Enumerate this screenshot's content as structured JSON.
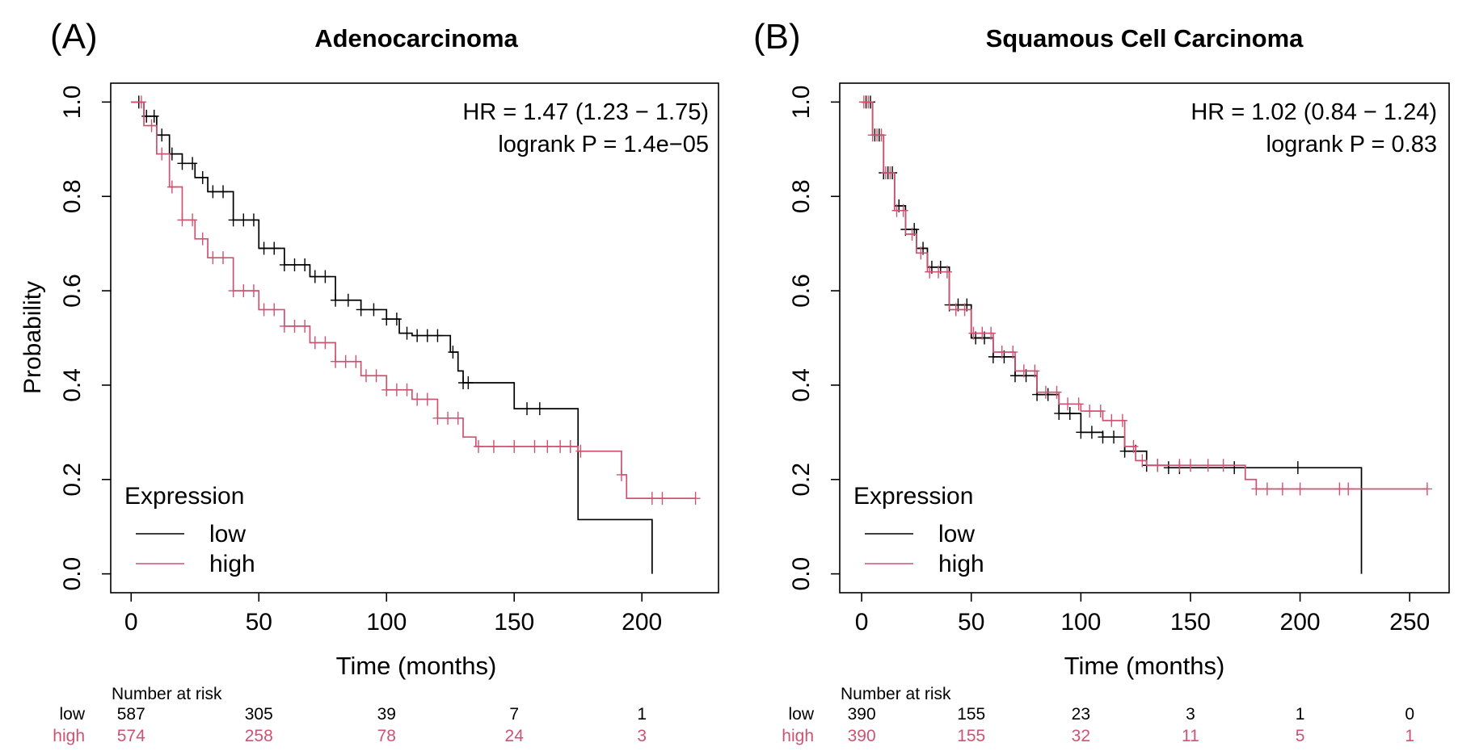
{
  "panels": [
    {
      "letter": "(A)",
      "annotation": {
        "hr": "HR = 1.47 (1.23 − 1.75)",
        "logrank": "logrank P = 1.4e−05"
      },
      "legend": {
        "title": "Expression",
        "low": "low",
        "high": "high"
      },
      "risk_table": {
        "header": "Number at risk",
        "low_label": "low",
        "high_label": "high",
        "low": [
          "587",
          "305",
          "39",
          "7",
          "1"
        ],
        "high": [
          "574",
          "258",
          "78",
          "24",
          "3"
        ]
      }
    },
    {
      "letter": "(B)",
      "annotation": {
        "hr": "HR = 1.02 (0.84 − 1.24)",
        "logrank": "logrank P = 0.83"
      },
      "legend": {
        "title": "Expression",
        "low": "low",
        "high": "high"
      },
      "risk_table": {
        "header": "Number at risk",
        "low_label": "low",
        "high_label": "high",
        "low": [
          "390",
          "155",
          "23",
          "3",
          "1",
          "0"
        ],
        "high": [
          "390",
          "155",
          "32",
          "11",
          "5",
          "1"
        ]
      }
    }
  ],
  "colors": {
    "low": "#000000",
    "high": "#cd5372"
  },
  "chart_data": [
    {
      "type": "line",
      "title": "Adenocarcinoma",
      "xlabel": "Time (months)",
      "ylabel": "Probability",
      "xlim": [
        -8,
        230
      ],
      "ylim": [
        -0.04,
        1.04
      ],
      "xticks": [
        0,
        50,
        100,
        150,
        200
      ],
      "yticks": [
        0.0,
        0.2,
        0.4,
        0.6,
        0.8,
        1.0
      ],
      "series": [
        {
          "name": "low",
          "x": [
            0,
            5,
            10,
            15,
            20,
            25,
            30,
            40,
            50,
            60,
            70,
            80,
            90,
            100,
            105,
            110,
            120,
            125,
            128,
            130,
            150,
            175,
            204,
            204
          ],
          "y": [
            1.0,
            0.97,
            0.93,
            0.89,
            0.87,
            0.84,
            0.81,
            0.75,
            0.69,
            0.655,
            0.63,
            0.58,
            0.56,
            0.54,
            0.51,
            0.505,
            0.505,
            0.47,
            0.43,
            0.405,
            0.35,
            0.115,
            0.115,
            0.0
          ],
          "censor_x": [
            3,
            6,
            9,
            12,
            16,
            20,
            24,
            28,
            32,
            36,
            40,
            44,
            48,
            52,
            56,
            60,
            64,
            68,
            72,
            76,
            80,
            85,
            90,
            95,
            100,
            104,
            108,
            112,
            116,
            120,
            126,
            130,
            132,
            155,
            160
          ]
        },
        {
          "name": "high",
          "x": [
            0,
            5,
            10,
            15,
            20,
            25,
            30,
            40,
            50,
            60,
            70,
            80,
            90,
            100,
            110,
            120,
            130,
            135,
            150,
            175,
            192,
            194,
            221
          ],
          "y": [
            1.0,
            0.95,
            0.89,
            0.82,
            0.75,
            0.71,
            0.67,
            0.6,
            0.56,
            0.525,
            0.49,
            0.45,
            0.42,
            0.39,
            0.37,
            0.33,
            0.29,
            0.27,
            0.27,
            0.26,
            0.21,
            0.16,
            0.16
          ],
          "censor_x": [
            4,
            8,
            12,
            16,
            20,
            24,
            28,
            32,
            36,
            40,
            44,
            48,
            52,
            56,
            60,
            64,
            68,
            72,
            76,
            80,
            84,
            88,
            92,
            96,
            100,
            104,
            108,
            112,
            116,
            120,
            124,
            128,
            136,
            142,
            150,
            158,
            163,
            168,
            172,
            176,
            192,
            204,
            208,
            221
          ]
        }
      ]
    },
    {
      "type": "line",
      "title": "Squamous Cell Carcinoma",
      "xlabel": "Time (months)",
      "ylabel": "",
      "xlim": [
        -10,
        268
      ],
      "ylim": [
        -0.04,
        1.04
      ],
      "xticks": [
        0,
        50,
        100,
        150,
        200,
        250
      ],
      "yticks": [
        0.0,
        0.2,
        0.4,
        0.6,
        0.8,
        1.0
      ],
      "series": [
        {
          "name": "low",
          "x": [
            0,
            5,
            10,
            15,
            20,
            25,
            30,
            40,
            50,
            60,
            70,
            80,
            90,
            100,
            110,
            120,
            130,
            140,
            150,
            175,
            200,
            228,
            228
          ],
          "y": [
            1.0,
            0.93,
            0.85,
            0.78,
            0.73,
            0.69,
            0.65,
            0.57,
            0.5,
            0.46,
            0.42,
            0.38,
            0.34,
            0.3,
            0.29,
            0.26,
            0.23,
            0.225,
            0.225,
            0.225,
            0.225,
            0.225,
            0.0
          ],
          "censor_x": [
            2,
            4,
            6,
            8,
            10,
            12,
            14,
            17,
            20,
            24,
            28,
            32,
            36,
            40,
            44,
            48,
            52,
            56,
            60,
            65,
            70,
            75,
            80,
            85,
            90,
            95,
            100,
            105,
            110,
            115,
            120,
            125,
            130,
            135,
            140,
            145,
            170,
            199
          ]
        },
        {
          "name": "high",
          "x": [
            0,
            5,
            10,
            15,
            20,
            25,
            30,
            40,
            50,
            60,
            70,
            80,
            90,
            100,
            110,
            120,
            125,
            130,
            170,
            175,
            180,
            258
          ],
          "y": [
            1.0,
            0.93,
            0.85,
            0.77,
            0.72,
            0.68,
            0.64,
            0.56,
            0.51,
            0.47,
            0.43,
            0.385,
            0.36,
            0.345,
            0.325,
            0.27,
            0.24,
            0.23,
            0.23,
            0.2,
            0.18,
            0.18
          ],
          "censor_x": [
            1,
            3,
            5,
            7,
            9,
            11,
            13,
            16,
            19,
            23,
            27,
            31,
            35,
            39,
            43,
            47,
            51,
            55,
            59,
            64,
            69,
            74,
            79,
            84,
            89,
            94,
            99,
            104,
            109,
            114,
            119,
            124,
            128,
            135,
            145,
            150,
            158,
            165,
            180,
            185,
            192,
            200,
            218,
            222,
            258
          ]
        }
      ]
    }
  ]
}
